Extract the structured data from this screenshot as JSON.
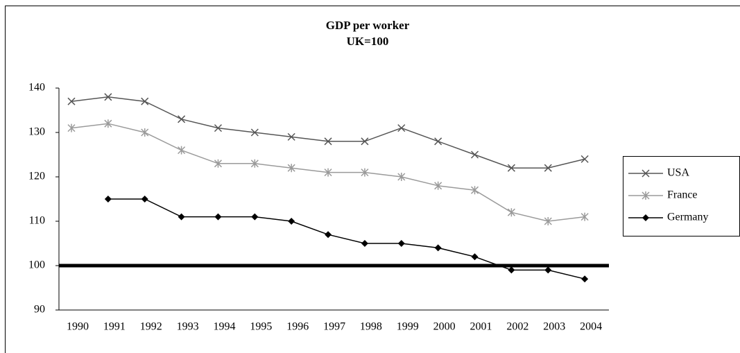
{
  "chart_data": {
    "type": "line",
    "title": "GDP per worker",
    "subtitle": "UK=100",
    "categories": [
      "1990",
      "1991",
      "1992",
      "1993",
      "1994",
      "1995",
      "1996",
      "1997",
      "1998",
      "1999",
      "2000",
      "2001",
      "2002",
      "2003",
      "2004"
    ],
    "series": [
      {
        "name": "USA",
        "color": "#555555",
        "marker": "x",
        "values": [
          137,
          138,
          137,
          133,
          131,
          130,
          129,
          128,
          128,
          131,
          128,
          125,
          122,
          122,
          124
        ]
      },
      {
        "name": "France",
        "color": "#9a9a9a",
        "marker": "star",
        "values": [
          131,
          132,
          130,
          126,
          123,
          123,
          122,
          121,
          121,
          120,
          118,
          117,
          112,
          110,
          111
        ]
      },
      {
        "name": "Germany",
        "color": "#000000",
        "marker": "diamond",
        "values": [
          null,
          115,
          115,
          111,
          111,
          111,
          110,
          107,
          105,
          105,
          104,
          102,
          99,
          99,
          97
        ]
      }
    ],
    "reference_value": 100,
    "ylim": [
      90,
      140
    ],
    "yticks": [
      90,
      100,
      110,
      120,
      130,
      140
    ],
    "grid": false,
    "legend": "right"
  }
}
